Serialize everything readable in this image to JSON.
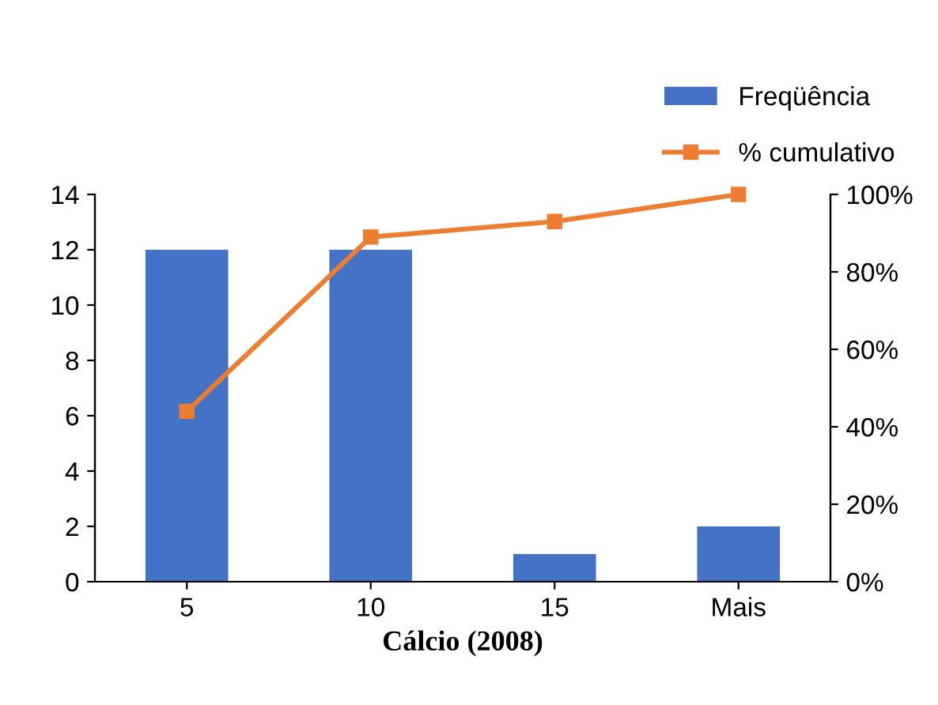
{
  "chart_data": {
    "type": "bar",
    "categories": [
      "5",
      "10",
      "15",
      "Mais"
    ],
    "xlabel": "Cálcio (2008)",
    "series": [
      {
        "name": "Freqüência",
        "color": "#4472c4",
        "values": [
          12,
          12,
          1,
          2
        ]
      },
      {
        "name": "% cumulativo",
        "type": "line",
        "axis": "y2",
        "color": "#ed7d31",
        "marker": "square",
        "values": [
          44,
          89,
          93,
          100
        ]
      }
    ],
    "ylim": [
      0,
      14
    ],
    "yticks": [
      0,
      2,
      4,
      6,
      8,
      10,
      12,
      14
    ],
    "y2lim": [
      0,
      100
    ],
    "y2ticks": [
      {
        "value": 0,
        "label": "0%"
      },
      {
        "value": 20,
        "label": "20%"
      },
      {
        "value": 40,
        "label": "40%"
      },
      {
        "value": 60,
        "label": "60%"
      },
      {
        "value": 80,
        "label": "80%"
      },
      {
        "value": 100,
        "label": "100%"
      }
    ],
    "grid": false,
    "legend": "top right"
  }
}
